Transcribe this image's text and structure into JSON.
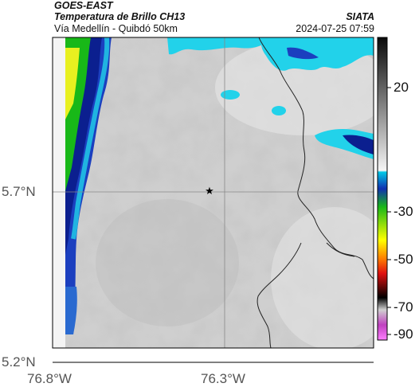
{
  "header": {
    "satellite": "GOES-EAST",
    "product": "Temperatura de Brillo CH13",
    "route": "Vía Medellín - Quibdó 50km",
    "agency": "SIATA",
    "timestamp": "2024-07-25 07:59"
  },
  "map": {
    "lat_ticks": [
      "5.7°N",
      "5.2°N"
    ],
    "lon_ticks": [
      "76.8°W",
      "76.3°W"
    ],
    "marker": "star",
    "gridlines": true
  },
  "colorbar": {
    "labels": [
      "20",
      "-30",
      "-50",
      "-70",
      "-90"
    ],
    "units_hint": "°C",
    "colors": {
      "warm_gray_top": "#1a1a1a",
      "warm_gray_bottom": "#f2f2f2",
      "cyan": "#00c8e6",
      "blue": "#1030b0",
      "green": "#18b818",
      "yellow": "#ffff00",
      "red": "#e01010",
      "black": "#000000",
      "magenta": "#c040c0"
    }
  },
  "colors": {
    "cloud_gray": "#c8c8c8",
    "cold_cloud_cyan": "#22d2ea",
    "deep_blue": "#0c2aa0",
    "border_line": "#222222"
  }
}
